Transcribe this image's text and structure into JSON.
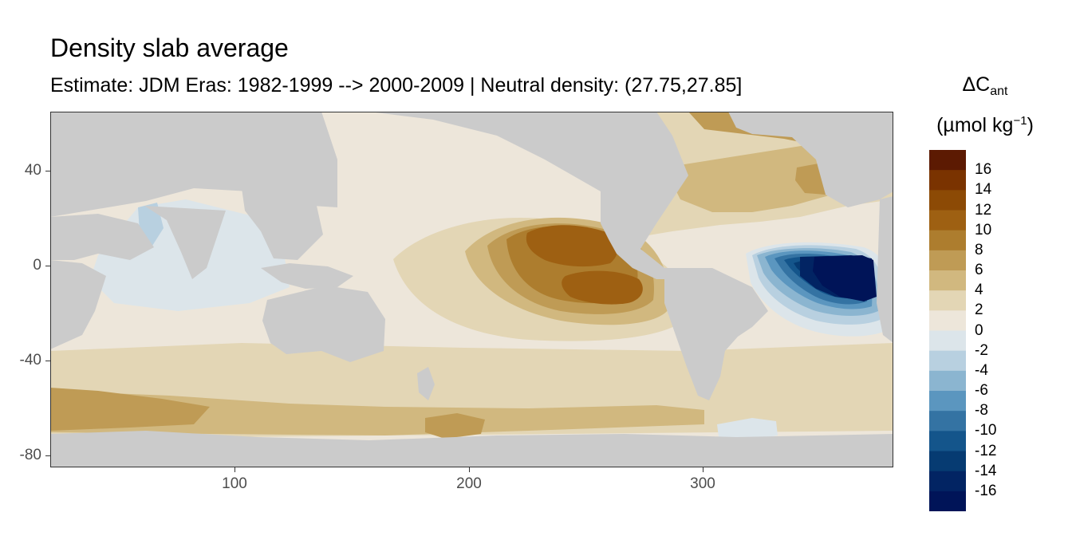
{
  "title": "Density slab average",
  "subtitle": "Estimate: JDM Eras: 1982-1999 --> 2000-2009 | Neutral density: (27.75,27.85]",
  "legend": {
    "title_prefix": "ΔC",
    "title_sub": "ant",
    "unit_prefix": "(µmol kg",
    "unit_sup": "−1",
    "unit_suffix": ")",
    "labels": [
      "16",
      "14",
      "12",
      "10",
      "8",
      "6",
      "4",
      "2",
      "0",
      "-2",
      "-4",
      "-6",
      "-8",
      "-10",
      "-12",
      "-14",
      "-16"
    ],
    "colors": [
      "#5c1a02",
      "#7a3300",
      "#8c4a05",
      "#9e6012",
      "#ad7d2e",
      "#bf9b55",
      "#d1b87f",
      "#e3d6b5",
      "#ede6da",
      "#dce5ea",
      "#b8d0e0",
      "#8bb5d0",
      "#5b96bf",
      "#3473a3",
      "#14558b",
      "#063b72",
      "#022463",
      "#001458"
    ]
  },
  "map": {
    "land_color": "#cbcbcb",
    "background_color": "#ede6da",
    "x_axis_ticks": [
      "100",
      "200",
      "300"
    ],
    "y_axis_ticks": [
      "40",
      "0",
      "-40",
      "-80"
    ],
    "xlim": [
      20,
      380
    ],
    "ylim": [
      -85,
      65
    ]
  }
}
